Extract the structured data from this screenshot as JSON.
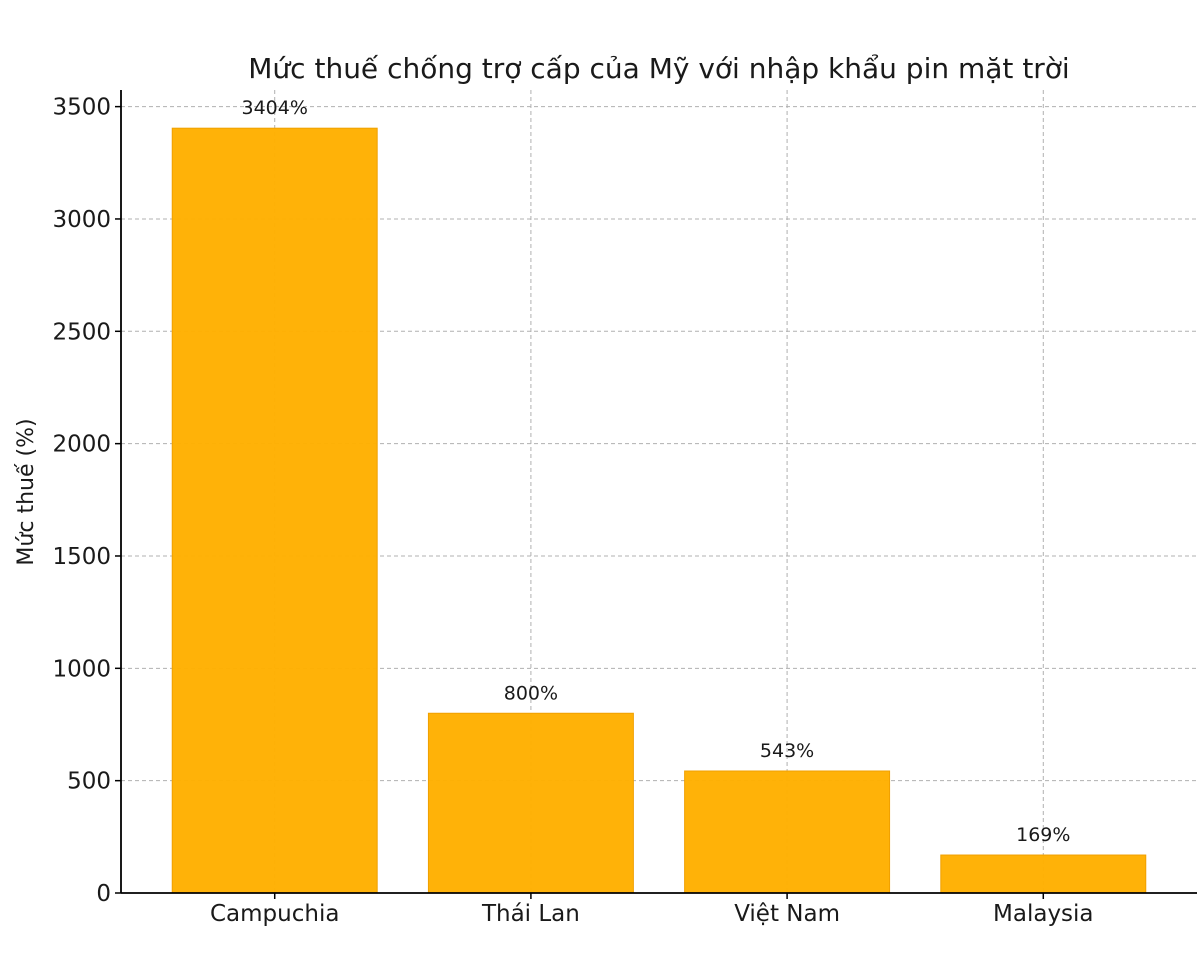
{
  "chart_data": {
    "type": "bar",
    "title": "Mức thuế chống trợ cấp của Mỹ với nhập khẩu pin mặt trời",
    "xlabel": "",
    "ylabel": "Mức thuế (%)",
    "categories": [
      "Campuchia",
      "Thái Lan",
      "Việt Nam",
      "Malaysia"
    ],
    "values": [
      3404,
      800,
      543,
      169
    ],
    "data_labels": [
      "3404%",
      "800%",
      "543%",
      "169%"
    ],
    "ylim": [
      0,
      3574
    ],
    "yticks": [
      0,
      500,
      1000,
      1500,
      2000,
      2500,
      3000,
      3500
    ],
    "grid": true,
    "bar_color": "#FFB000",
    "grid_color": "#b0b0b0"
  }
}
